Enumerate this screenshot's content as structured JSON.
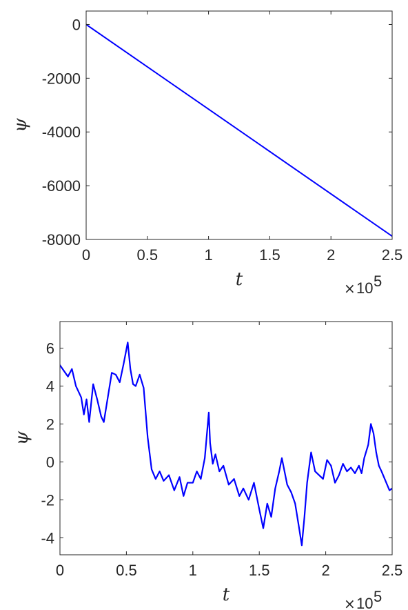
{
  "colors": {
    "series": "#0000ff",
    "axes": "#262626"
  },
  "chart_data": [
    {
      "type": "line",
      "xlabel": "t",
      "ylabel": "ψ",
      "x_exponent_label": "10",
      "x_exponent": "5",
      "xlim": [
        0,
        2.5
      ],
      "ylim": [
        -8000,
        500
      ],
      "xticks": [
        0,
        0.5,
        1,
        1.5,
        2,
        2.5
      ],
      "xtick_labels": [
        "0",
        "0.5",
        "1",
        "1.5",
        "2",
        "2.5"
      ],
      "yticks": [
        0,
        -2000,
        -4000,
        -6000,
        -8000
      ],
      "ytick_labels": [
        "0",
        "-2000",
        "-4000",
        "-6000",
        "-8000"
      ],
      "grid": false,
      "series": [
        {
          "x": [
            0,
            2.5
          ],
          "y": [
            0,
            -7880
          ]
        }
      ]
    },
    {
      "type": "line",
      "xlabel": "t",
      "ylabel": "ψ",
      "x_exponent_label": "10",
      "x_exponent": "5",
      "xlim": [
        0,
        2.5
      ],
      "ylim": [
        -4.9,
        7.4
      ],
      "xticks": [
        0,
        0.5,
        1,
        1.5,
        2,
        2.5
      ],
      "xtick_labels": [
        "0",
        "0.5",
        "1",
        "1.5",
        "2",
        "2.5"
      ],
      "yticks": [
        6,
        4,
        2,
        0,
        -2,
        -4
      ],
      "ytick_labels": [
        "6",
        "4",
        "2",
        "0",
        "-2",
        "-4"
      ],
      "grid": false,
      "series": [
        {
          "x": [
            0,
            0.03,
            0.06,
            0.09,
            0.12,
            0.16,
            0.18,
            0.2,
            0.22,
            0.25,
            0.28,
            0.31,
            0.33,
            0.36,
            0.39,
            0.42,
            0.45,
            0.48,
            0.51,
            0.53,
            0.55,
            0.57,
            0.6,
            0.63,
            0.66,
            0.69,
            0.72,
            0.75,
            0.78,
            0.82,
            0.86,
            0.9,
            0.93,
            0.96,
            1.0,
            1.03,
            1.06,
            1.09,
            1.11,
            1.12,
            1.13,
            1.15,
            1.17,
            1.2,
            1.23,
            1.27,
            1.31,
            1.35,
            1.38,
            1.42,
            1.46,
            1.5,
            1.53,
            1.56,
            1.59,
            1.62,
            1.65,
            1.67,
            1.69,
            1.71,
            1.74,
            1.77,
            1.8,
            1.82,
            1.84,
            1.86,
            1.89,
            1.92,
            1.95,
            1.98,
            2.01,
            2.04,
            2.07,
            2.1,
            2.13,
            2.16,
            2.19,
            2.22,
            2.25,
            2.27,
            2.29,
            2.32,
            2.34,
            2.36,
            2.38,
            2.4,
            2.42,
            2.45,
            2.48,
            2.5
          ],
          "y": [
            5.1,
            4.8,
            4.5,
            4.9,
            4.0,
            3.4,
            2.5,
            3.3,
            2.1,
            4.1,
            3.3,
            2.4,
            2.1,
            3.4,
            4.7,
            4.6,
            4.2,
            5.2,
            6.3,
            4.9,
            4.1,
            4.0,
            4.6,
            3.9,
            1.3,
            -0.4,
            -0.9,
            -0.5,
            -1.0,
            -0.7,
            -1.5,
            -0.8,
            -1.8,
            -1.1,
            -1.1,
            -0.5,
            -0.9,
            0.2,
            1.8,
            2.6,
            1.0,
            -0.1,
            0.4,
            -0.5,
            -0.2,
            -1.2,
            -0.9,
            -1.8,
            -1.4,
            -2.0,
            -1.1,
            -2.5,
            -3.5,
            -2.2,
            -2.9,
            -1.4,
            -0.5,
            0.2,
            -0.5,
            -1.2,
            -1.6,
            -2.2,
            -3.5,
            -4.4,
            -2.9,
            -1.1,
            0.5,
            -0.5,
            -0.7,
            -0.9,
            0.1,
            -0.2,
            -1.1,
            -0.7,
            -0.1,
            -0.5,
            -0.3,
            -0.6,
            -0.2,
            -0.6,
            0.2,
            0.9,
            2.0,
            1.5,
            0.5,
            -0.2,
            -0.5,
            -1.0,
            -1.5,
            -1.4
          ]
        }
      ]
    }
  ]
}
